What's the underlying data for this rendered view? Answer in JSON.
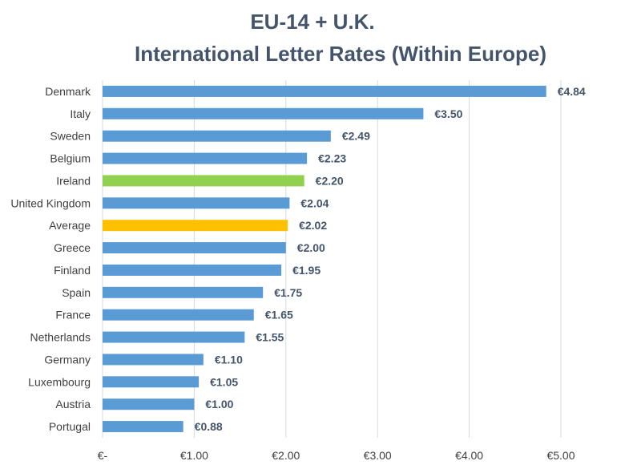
{
  "chart_data": {
    "type": "bar",
    "orientation": "horizontal",
    "title": "EU-14 + U.K.",
    "subtitle": "International Letter Rates (Within Europe)",
    "xlabel": "",
    "ylabel": "",
    "xlim": [
      0,
      5
    ],
    "grid": true,
    "legend": "none",
    "categories": [
      "Denmark",
      "Italy",
      "Sweden",
      "Belgium",
      "Ireland",
      "United Kingdom",
      "Average",
      "Greece",
      "Finland",
      "Spain",
      "France",
      "Netherlands",
      "Germany",
      "Luxembourg",
      "Austria",
      "Portugal"
    ],
    "values": [
      4.84,
      3.5,
      2.49,
      2.23,
      2.2,
      2.04,
      2.02,
      2.0,
      1.95,
      1.75,
      1.65,
      1.55,
      1.1,
      1.05,
      1.0,
      0.88
    ],
    "value_labels": [
      "€4.84",
      "€3.50",
      "€2.49",
      "€2.23",
      "€2.20",
      "€2.04",
      "€2.02",
      "€2.00",
      "€1.95",
      "€1.75",
      "€1.65",
      "€1.55",
      "€1.10",
      "€1.05",
      "€1.00",
      "€0.88"
    ],
    "colors": [
      "#5b9bd5",
      "#5b9bd5",
      "#5b9bd5",
      "#5b9bd5",
      "#92d050",
      "#5b9bd5",
      "#ffc000",
      "#5b9bd5",
      "#5b9bd5",
      "#5b9bd5",
      "#5b9bd5",
      "#5b9bd5",
      "#5b9bd5",
      "#5b9bd5",
      "#5b9bd5",
      "#5b9bd5"
    ],
    "x_ticks": [
      0,
      1,
      2,
      3,
      4,
      5
    ],
    "x_tick_labels": [
      "€-",
      "€1.00",
      "€2.00",
      "€3.00",
      "€4.00",
      "€5.00"
    ]
  },
  "colors": {
    "title": "#44546a",
    "gridline": "#d9d9d9",
    "bar_default": "#5b9bd5",
    "bar_ireland": "#92d050",
    "bar_average": "#ffc000"
  }
}
